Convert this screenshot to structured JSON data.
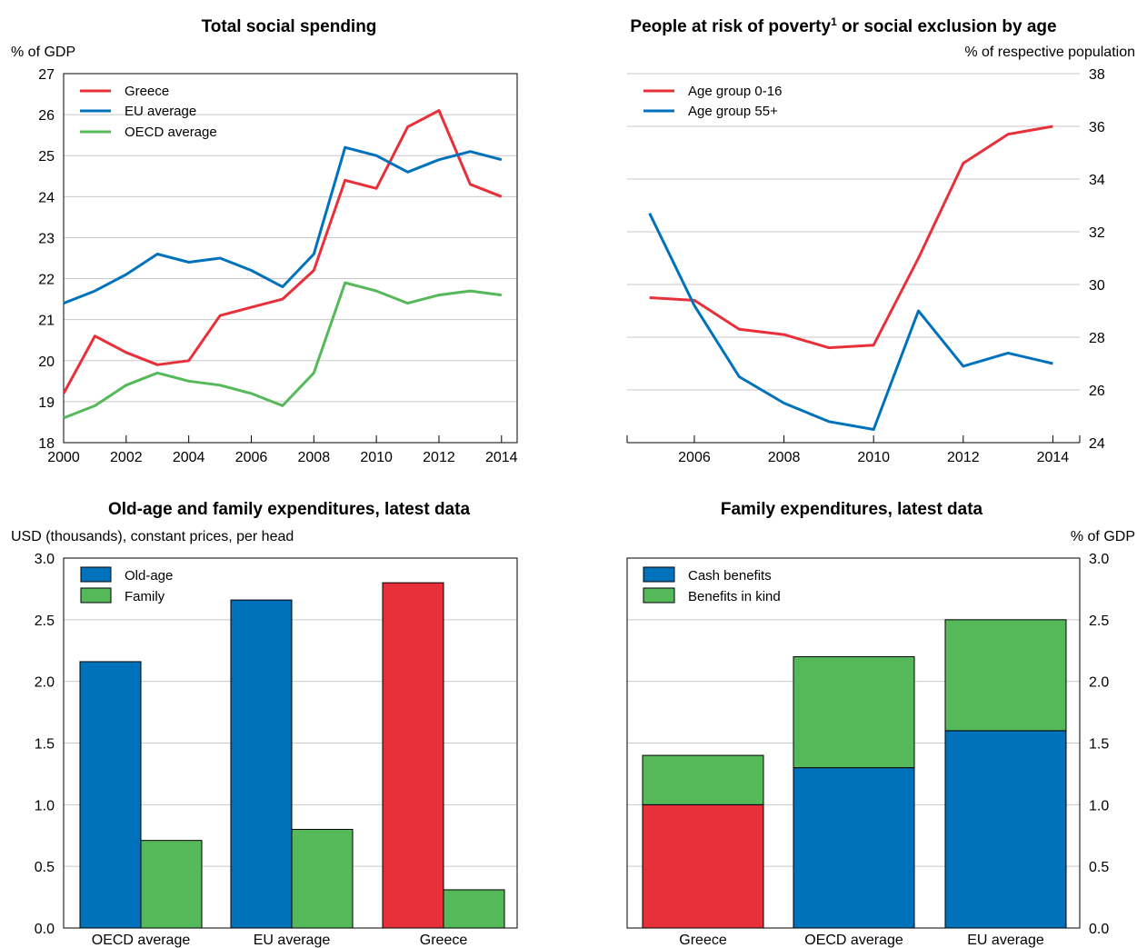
{
  "colors": {
    "red": "#e8303a",
    "blue": "#0072bc",
    "green": "#55b95a"
  },
  "chart_data": [
    {
      "id": "p1",
      "type": "line",
      "title": "Total social spending",
      "ylabel": "% of GDP",
      "ylim": [
        18,
        27
      ],
      "yticks": [
        "18",
        "19",
        "20",
        "21",
        "22",
        "23",
        "24",
        "25",
        "26",
        "27"
      ],
      "xticks": [
        "2000",
        "2002",
        "2004",
        "2006",
        "2008",
        "2010",
        "2012",
        "2014"
      ],
      "x": [
        2000,
        2001,
        2002,
        2003,
        2004,
        2005,
        2006,
        2007,
        2008,
        2009,
        2010,
        2011,
        2012,
        2013,
        2014
      ],
      "legend": "top-left",
      "grid": true,
      "series": [
        {
          "name": "Greece",
          "color": "red",
          "values": [
            19.2,
            20.6,
            20.2,
            19.9,
            20.0,
            21.1,
            21.3,
            21.5,
            22.2,
            24.4,
            24.2,
            25.7,
            26.1,
            24.3,
            24.0
          ]
        },
        {
          "name": "EU average",
          "color": "blue",
          "values": [
            21.4,
            21.7,
            22.1,
            22.6,
            22.4,
            22.5,
            22.2,
            21.8,
            22.6,
            25.2,
            25.0,
            24.6,
            24.9,
            25.1,
            24.9
          ]
        },
        {
          "name": "OECD average",
          "color": "green",
          "values": [
            18.6,
            18.9,
            19.4,
            19.7,
            19.5,
            19.4,
            19.2,
            18.9,
            19.7,
            21.9,
            21.7,
            21.4,
            21.6,
            21.7,
            21.6
          ]
        }
      ]
    },
    {
      "id": "p2",
      "type": "line",
      "title": "People at risk of poverty",
      "title_sup": "1",
      "title_rest": " or social exclusion by age",
      "ylabel": "% of respective population",
      "ylim": [
        24,
        38
      ],
      "yticks": [
        "24",
        "26",
        "28",
        "30",
        "32",
        "34",
        "36",
        "38"
      ],
      "xticks": [
        "2006",
        "2008",
        "2010",
        "2012",
        "2014"
      ],
      "x": [
        2005,
        2006,
        2007,
        2008,
        2009,
        2010,
        2011,
        2012,
        2013,
        2014
      ],
      "legend": "top-left",
      "grid": true,
      "series": [
        {
          "name": "Age group 0-16",
          "color": "red",
          "values": [
            29.5,
            29.4,
            28.3,
            28.1,
            27.6,
            27.7,
            31.0,
            34.6,
            35.7,
            36.0
          ]
        },
        {
          "name": "Age group 55+",
          "color": "blue",
          "values": [
            32.7,
            29.2,
            26.5,
            25.5,
            24.8,
            24.5,
            29.0,
            26.9,
            27.4,
            27.0
          ]
        }
      ]
    },
    {
      "id": "p3",
      "type": "bar",
      "title": "Old-age and family expenditures, latest data",
      "ylabel": "USD (thousands), constant prices, per head",
      "ylim": [
        0,
        3
      ],
      "yticks": [
        "0.0",
        "0.5",
        "1.0",
        "1.5",
        "2.0",
        "2.5",
        "3.0"
      ],
      "categories": [
        "OECD average",
        "EU average",
        "Greece"
      ],
      "legend": "top-left",
      "grid": true,
      "series": [
        {
          "name": "Old-age",
          "color": "blue",
          "values": [
            2.16,
            2.66,
            2.8
          ]
        },
        {
          "name": "Family",
          "color": "green",
          "values": [
            0.71,
            0.8,
            0.31
          ]
        }
      ],
      "highlight": {
        "category": "Greece",
        "series": "Old-age",
        "color": "red"
      }
    },
    {
      "id": "p4",
      "type": "bar",
      "stacked": true,
      "title": "Family expenditures, latest data",
      "ylabel": "% of GDP",
      "ylim": [
        0,
        3
      ],
      "yticks": [
        "0.0",
        "0.5",
        "1.0",
        "1.5",
        "2.0",
        "2.5",
        "3.0"
      ],
      "categories": [
        "Greece",
        "OECD average",
        "EU average"
      ],
      "legend": "top-left",
      "grid": true,
      "series": [
        {
          "name": "Cash benefits",
          "color": "blue",
          "values": [
            1.0,
            1.3,
            1.6
          ]
        },
        {
          "name": "Benefits in kind",
          "color": "green",
          "values": [
            0.4,
            0.9,
            0.9
          ]
        }
      ],
      "highlight": {
        "category": "Greece",
        "series": "Cash benefits",
        "color": "red"
      }
    }
  ]
}
